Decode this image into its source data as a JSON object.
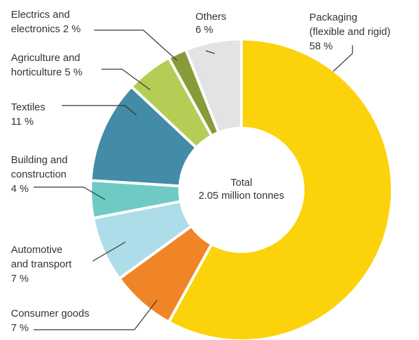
{
  "chart_data": {
    "type": "pie",
    "variant": "donut",
    "center_label": [
      "Total",
      "2.05 million tonnes"
    ],
    "categories": [
      "Packaging (flexible and rigid)",
      "Consumer goods",
      "Automotive and transport",
      "Building and construction",
      "Textiles",
      "Agriculture and horticulture",
      "Electrics and electronics",
      "Others"
    ],
    "values": [
      58,
      7,
      7,
      4,
      11,
      5,
      2,
      6
    ],
    "unit": "%",
    "colors": [
      "#fcd20a",
      "#f08527",
      "#addde8",
      "#6fcac4",
      "#438ca7",
      "#b5cc55",
      "#889b3a",
      "#e2e3e5"
    ],
    "labels": [
      [
        "Packaging",
        "(flexible and rigid)",
        "58 %"
      ],
      [
        "Consumer goods",
        "7 %"
      ],
      [
        "Automotive",
        "and transport",
        "7 %"
      ],
      [
        "Building and",
        "construction",
        "4 %"
      ],
      [
        "Textiles",
        "11 %"
      ],
      [
        "Agriculture and",
        "horticulture 5 %"
      ],
      [
        "Electrics and",
        "electronics 2 %"
      ],
      [
        "Others",
        "6 %"
      ]
    ]
  }
}
